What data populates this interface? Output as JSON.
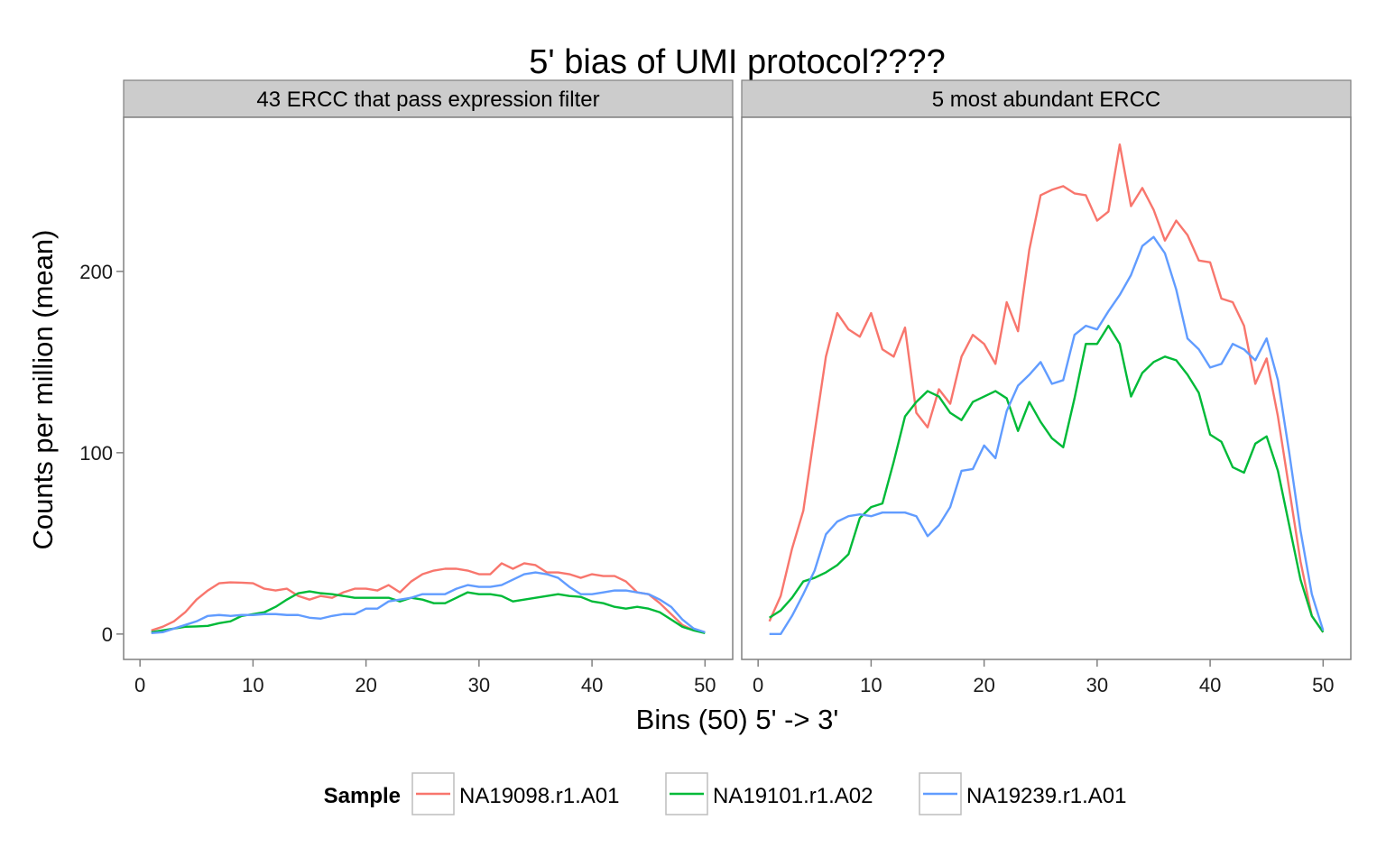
{
  "chart_data": {
    "type": "line",
    "title": "5' bias of UMI protocol????",
    "xlabel": "Bins (50) 5' -> 3'",
    "ylabel": "Counts per million (mean)",
    "x_ticks": [
      0,
      10,
      20,
      30,
      40,
      50
    ],
    "y_ticks": [
      0,
      100,
      200
    ],
    "xlim": [
      -1.45,
      52.45
    ],
    "ylim": [
      -14,
      285
    ],
    "grid": false,
    "legend": {
      "title": "Sample",
      "position": "bottom"
    },
    "series_meta": [
      {
        "name": "NA19098.r1.A01",
        "color": "#F8766D"
      },
      {
        "name": "NA19101.r1.A02",
        "color": "#00BA38"
      },
      {
        "name": "NA19239.r1.A01",
        "color": "#619CFF"
      }
    ],
    "panels": [
      {
        "strip": "43 ERCC that pass expression filter",
        "x": [
          1,
          2,
          3,
          4,
          5,
          6,
          7,
          8,
          9,
          10,
          11,
          12,
          13,
          14,
          15,
          16,
          17,
          18,
          19,
          20,
          21,
          22,
          23,
          24,
          25,
          26,
          27,
          28,
          29,
          30,
          31,
          32,
          33,
          34,
          35,
          36,
          37,
          38,
          39,
          40,
          41,
          42,
          43,
          44,
          45,
          46,
          47,
          48,
          49,
          50
        ],
        "series": [
          {
            "name": "NA19098.r1.A01",
            "values": [
              2,
              4,
              7,
              12,
              19,
              24,
              28,
              28.5,
              28.3,
              28,
              25,
              24,
              25,
              21,
              19,
              21,
              20,
              23,
              25,
              25,
              24,
              27,
              23,
              29,
              33,
              35,
              36,
              36,
              35,
              33,
              33,
              39,
              36,
              39,
              38,
              34,
              34,
              33,
              31,
              33,
              32,
              32,
              29,
              23,
              22,
              17,
              11,
              5,
              2,
              1
            ]
          },
          {
            "name": "NA19101.r1.A02",
            "values": [
              1,
              2,
              3,
              4,
              4.2,
              4.5,
              6,
              7,
              10,
              11,
              12,
              15,
              19,
              22.5,
              23.5,
              22.5,
              22,
              21,
              20,
              20,
              20,
              20,
              18,
              20,
              19,
              17,
              17,
              20,
              23,
              22,
              22,
              21,
              18,
              19,
              20,
              21,
              22,
              21,
              20.5,
              18,
              17,
              15,
              14,
              15,
              14,
              12,
              8,
              4,
              2,
              0.5
            ]
          },
          {
            "name": "NA19239.r1.A01",
            "values": [
              0.5,
              1,
              3,
              5,
              7,
              10,
              10.5,
              10,
              10.5,
              10.5,
              11,
              11,
              10.5,
              10.5,
              9,
              8.5,
              10,
              11,
              11,
              14,
              14,
              18,
              19,
              20,
              22,
              22,
              22,
              25,
              27,
              26,
              26,
              27,
              30,
              33,
              34,
              33,
              31,
              26,
              22,
              22,
              23,
              24,
              24,
              23,
              22,
              19,
              15,
              8,
              3,
              1
            ]
          }
        ]
      },
      {
        "strip": "5 most abundant ERCC",
        "x": [
          1,
          2,
          3,
          4,
          5,
          6,
          7,
          8,
          9,
          10,
          11,
          12,
          13,
          14,
          15,
          16,
          17,
          18,
          19,
          20,
          21,
          22,
          23,
          24,
          25,
          26,
          27,
          28,
          29,
          30,
          31,
          32,
          33,
          34,
          35,
          36,
          37,
          38,
          39,
          40,
          41,
          42,
          43,
          44,
          45,
          46,
          47,
          48,
          49,
          50
        ],
        "series": [
          {
            "name": "NA19098.r1.A01",
            "values": [
              7,
              21,
              47,
              68,
              111,
              153,
              177,
              168,
              164,
              177,
              157,
              153,
              169,
              122,
              114,
              135,
              127,
              153,
              165,
              160,
              149,
              183,
              167,
              212,
              242,
              245,
              247,
              243,
              242,
              228,
              233,
              270,
              236,
              246,
              234,
              217,
              228,
              220,
              206,
              205,
              185,
              183,
              170,
              138,
              152,
              120,
              80,
              40,
              10,
              1
            ]
          },
          {
            "name": "NA19101.r1.A02",
            "values": [
              9,
              13,
              20,
              29,
              31,
              34,
              38,
              44,
              64,
              70,
              72,
              95,
              120,
              128,
              134,
              131,
              122,
              118,
              128,
              131,
              134,
              130,
              112,
              128,
              117,
              108,
              103,
              130,
              160,
              160,
              170,
              160,
              131,
              144,
              150,
              153,
              151,
              143,
              133,
              110,
              106,
              92,
              89,
              105,
              109,
              90,
              60,
              30,
              10,
              1
            ]
          },
          {
            "name": "NA19239.r1.A01",
            "values": [
              0,
              0,
              10,
              22,
              35,
              55,
              62,
              65,
              66,
              65,
              67,
              67,
              67,
              65,
              54,
              60,
              70,
              90,
              91,
              104,
              97,
              123,
              137,
              143,
              150,
              138,
              140,
              165,
              170,
              168,
              178,
              187,
              198,
              214,
              219,
              210,
              190,
              163,
              157,
              147,
              149,
              160,
              157,
              151,
              163,
              140,
              100,
              57,
              22,
              2
            ]
          }
        ]
      }
    ]
  }
}
